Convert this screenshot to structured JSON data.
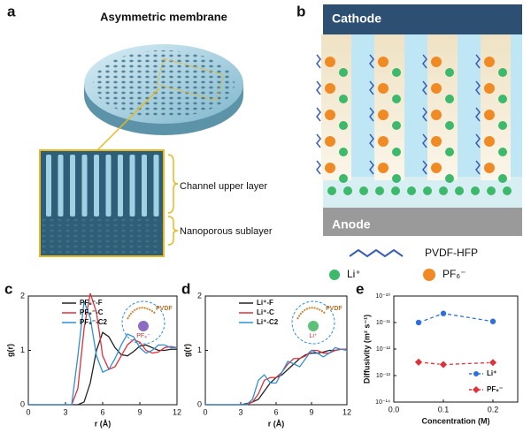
{
  "panel_labels": [
    "a",
    "b",
    "c",
    "d",
    "e"
  ],
  "panel_a": {
    "title": "Asymmetric membrane",
    "labels": [
      "Channel upper layer",
      "Nanoporous sublayer"
    ]
  },
  "panel_b": {
    "electrodes": [
      "Cathode",
      "Anode"
    ],
    "legend": [
      "PVDF-HFP",
      "Li⁺",
      "PF₆⁻"
    ]
  },
  "chart_data": [
    {
      "type": "line",
      "xlabel": "r (Å)",
      "ylabel": "g(r)",
      "legend": "upper left",
      "annotations": [
        "PVDF",
        "PF₆⁻"
      ],
      "x": [
        0,
        0.5,
        1,
        1.5,
        2,
        2.5,
        3,
        3.5,
        4,
        4.5,
        5,
        5.5,
        6,
        6.5,
        7,
        7.5,
        8,
        8.5,
        9,
        9.5,
        10,
        10.5,
        11,
        11.5,
        12
      ],
      "series": [
        {
          "name": "PF₆⁻-F",
          "color": "#222222",
          "values": [
            0,
            0,
            0,
            0,
            0,
            0,
            0,
            0,
            0,
            0.05,
            0.4,
            1.0,
            1.33,
            1.25,
            1.05,
            0.92,
            0.9,
            0.98,
            1.08,
            1.1,
            1.05,
            1.0,
            1.0,
            1.02,
            1.02
          ]
        },
        {
          "name": "PF₆⁻-C",
          "color": "#e0303a",
          "values": [
            0,
            0,
            0,
            0,
            0,
            0,
            0,
            0,
            0.3,
            1.4,
            2.05,
            1.7,
            0.9,
            0.65,
            0.7,
            0.9,
            1.1,
            1.2,
            1.15,
            1.0,
            0.95,
            0.97,
            1.05,
            1.07,
            1.05
          ]
        },
        {
          "name": "PF₆⁻-C2",
          "color": "#2f8fd8",
          "values": [
            0,
            0,
            0,
            0,
            0,
            0,
            0,
            0,
            0.9,
            1.9,
            1.6,
            0.9,
            0.6,
            0.65,
            0.85,
            1.1,
            1.3,
            1.25,
            1.05,
            0.95,
            1.0,
            1.1,
            1.1,
            1.05,
            1.05
          ]
        }
      ],
      "xlim": [
        0,
        12
      ],
      "xticks": [
        0,
        3,
        6,
        9,
        12
      ],
      "ylim": [
        0,
        2
      ],
      "yticks": [
        0,
        1,
        2
      ]
    },
    {
      "type": "line",
      "xlabel": "r (Å)",
      "ylabel": "g(r)",
      "legend": "upper left",
      "annotations": [
        "PVDF",
        "Li⁺"
      ],
      "x": [
        0,
        0.5,
        1,
        1.5,
        2,
        2.5,
        3,
        3.5,
        4,
        4.5,
        5,
        5.5,
        6,
        6.5,
        7,
        7.5,
        8,
        8.5,
        9,
        9.5,
        10,
        10.5,
        11,
        11.5,
        12
      ],
      "series": [
        {
          "name": "Li⁺-F",
          "color": "#222222",
          "values": [
            0,
            0,
            0,
            0,
            0,
            0,
            0,
            0.02,
            0.05,
            0.1,
            0.25,
            0.4,
            0.5,
            0.55,
            0.65,
            0.75,
            0.85,
            0.92,
            0.95,
            0.95,
            0.97,
            1.0,
            1.0,
            1.02,
            1.02
          ]
        },
        {
          "name": "Li⁺-C",
          "color": "#e0303a",
          "values": [
            0,
            0,
            0,
            0,
            0,
            0,
            0,
            0,
            0.05,
            0.2,
            0.45,
            0.5,
            0.5,
            0.6,
            0.75,
            0.85,
            0.85,
            0.9,
            1.0,
            1.0,
            0.95,
            0.95,
            1.0,
            1.02,
            1.02
          ]
        },
        {
          "name": "Li⁺-C2",
          "color": "#2f8fd8",
          "values": [
            0,
            0,
            0,
            0,
            0,
            0,
            0,
            0,
            0.1,
            0.45,
            0.55,
            0.4,
            0.4,
            0.6,
            0.8,
            0.75,
            0.7,
            0.85,
            1.0,
            0.95,
            0.88,
            0.95,
            1.05,
            1.02,
            1.0
          ]
        }
      ],
      "xlim": [
        0,
        12
      ],
      "xticks": [
        0,
        3,
        6,
        9,
        12
      ],
      "ylim": [
        0,
        2
      ],
      "yticks": [
        0,
        1,
        2
      ]
    },
    {
      "type": "line",
      "log_y": true,
      "linestyle": "dashed",
      "legend": "lower right",
      "xlabel": "Concentration (M)",
      "ylabel": "Diffusivity (m² s⁻¹)",
      "x": [
        0.05,
        0.1,
        0.2
      ],
      "series": [
        {
          "name": "Li⁺",
          "color": "#2f6fd8",
          "marker": "circle",
          "values": [
            1e-11,
            2.2e-11,
            1.1e-11
          ]
        },
        {
          "name": "PF₆⁻",
          "color": "#e0303a",
          "marker": "diamond",
          "values": [
            3.2e-13,
            2.6e-13,
            3.1e-13
          ]
        }
      ],
      "xlim": [
        0,
        0.25
      ],
      "xticks": [
        {
          "value": 0,
          "label": "0.0"
        },
        0.1,
        0.2
      ],
      "ylim": [
        1e-14,
        1e-10
      ],
      "yticks": [
        {
          "value": 1e-14,
          "label": "10⁻¹⁴"
        },
        {
          "value": 1e-13,
          "label": "10⁻¹³"
        },
        {
          "value": 1e-12,
          "label": "10⁻¹²"
        },
        {
          "value": 1e-11,
          "label": "10⁻¹¹"
        },
        {
          "value": 1e-10,
          "label": "10⁻¹⁰"
        }
      ]
    }
  ]
}
